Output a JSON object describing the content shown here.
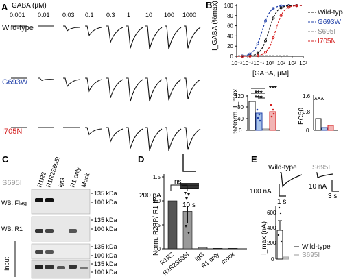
{
  "panels": {
    "A": "A",
    "B": "B",
    "C": "C",
    "D": "D",
    "E": "E"
  },
  "panelA": {
    "title": "GABA (µM)",
    "concentrations": [
      "0.001",
      "0.01",
      "0.03",
      "0.1",
      "0.3",
      "1",
      "10",
      "100",
      "1000"
    ],
    "rows": [
      {
        "label": "Wild-type",
        "color": "#111111"
      },
      {
        "label": "G693W",
        "color": "#1f3fa8"
      },
      {
        "label": "I705N",
        "color": "#d42020"
      },
      {
        "label": "S695I",
        "color": "#9a9a9a"
      }
    ],
    "scale_current": "200 pA",
    "scale_time": "10 s"
  },
  "panelB": {
    "ylabel": "I_GABA (%max)",
    "xlabel": "[GABA, µM]",
    "yticks": [
      "0",
      "20",
      "40",
      "60",
      "80",
      "100"
    ],
    "xticks": [
      "10⁻³",
      "10⁻²",
      "10⁻¹",
      "10⁰",
      "10¹",
      "10²",
      "10³"
    ],
    "legend": [
      {
        "label": "Wild-type",
        "color": "#111111"
      },
      {
        "label": "G693W",
        "color": "#1f3fa8"
      },
      {
        "label": "S695I",
        "color": "#888888"
      },
      {
        "label": "I705N",
        "color": "#d42020"
      }
    ],
    "bar1_ylabel": "%Norm. I_max",
    "bar1_yticks": [
      "0",
      "40",
      "80",
      "120"
    ],
    "bar1_sig": "***",
    "bar2_ylabel": "EC50",
    "bar2_yticks": [
      "0",
      "0.8",
      "1.6"
    ]
  },
  "panelC": {
    "lanes": [
      "R1R2",
      "R1R2S695I",
      "IgG",
      "R1 only",
      "Mock"
    ],
    "blot_labels": [
      "WB: Flag",
      "WB: R1",
      "Input"
    ],
    "markers": [
      "135 kDa",
      "100 kDa",
      "135 kDa",
      "100 kDa",
      "135 kDa",
      "100 kDa",
      "135 kDa",
      "100 kDa"
    ]
  },
  "panelD": {
    "ylabel": "Norm. R2 IP/ R1 IP",
    "yticks": [
      "0",
      "0.5",
      "1.0",
      "1.5"
    ],
    "categories": [
      "R1R2",
      "R1R2S695I",
      "IgG",
      "R1 only",
      "mock"
    ],
    "sig": "ns"
  },
  "panelE": {
    "trace_labels": [
      "Wild-type",
      "S695I"
    ],
    "scale1_current": "100 nA",
    "scale1_time": "1 s",
    "scale2_current": "10 nA",
    "scale2_time": "3 s",
    "ylabel": "I_max (nA)",
    "yticks": [
      "0",
      "200",
      "400",
      "600"
    ],
    "legend": [
      {
        "label": "Wild-type",
        "color": "#111111"
      },
      {
        "label": "S695I",
        "color": "#9a9a9a"
      }
    ]
  }
}
